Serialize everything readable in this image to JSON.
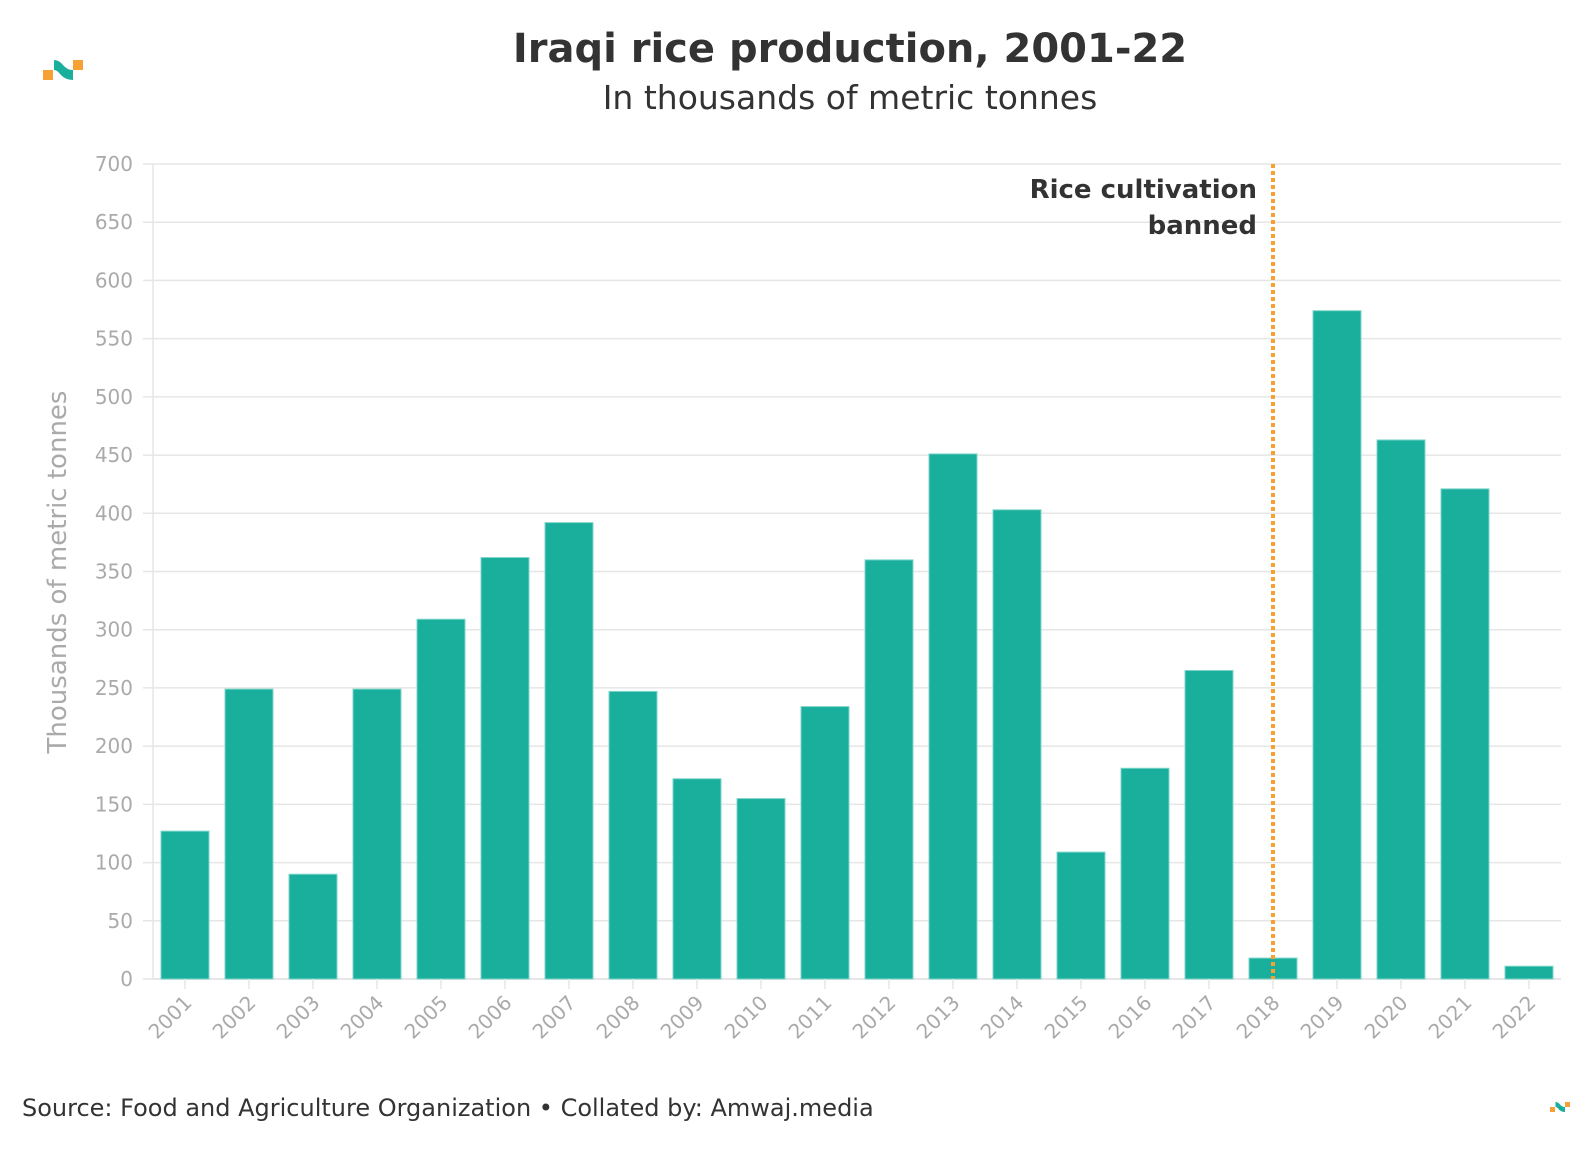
{
  "header": {
    "title": "Iraqi rice production, 2001-22",
    "subtitle": "In thousands of metric tonnes"
  },
  "footer": {
    "source": "Source: Food and Agriculture Organization • Collated by: Amwaj.media"
  },
  "brand": {
    "logo_icon": "amwaj-logo-icon",
    "colors": {
      "teal": "#1aae9c",
      "orange": "#f7a034",
      "text": "#333333",
      "axis": "#aaaaaa",
      "grid": "#e6e6e6"
    }
  },
  "chart_data": {
    "type": "bar",
    "title": "Iraqi rice production, 2001-22",
    "subtitle": "In thousands of metric tonnes",
    "xlabel": "",
    "ylabel": "Thousands of metric tonnes",
    "ylim": [
      0,
      700
    ],
    "yticks": [
      0,
      50,
      100,
      150,
      200,
      250,
      300,
      350,
      400,
      450,
      500,
      550,
      600,
      650,
      700
    ],
    "grid": true,
    "categories": [
      "2001",
      "2002",
      "2003",
      "2004",
      "2005",
      "2006",
      "2007",
      "2008",
      "2009",
      "2010",
      "2011",
      "2012",
      "2013",
      "2014",
      "2015",
      "2016",
      "2017",
      "2018",
      "2019",
      "2020",
      "2021",
      "2022"
    ],
    "values": [
      127,
      249,
      90,
      249,
      309,
      362,
      392,
      247,
      172,
      155,
      234,
      360,
      451,
      403,
      109,
      181,
      265,
      18,
      574,
      463,
      421,
      11
    ],
    "bar_color": "#1aae9c",
    "annotations": [
      {
        "type": "vline",
        "x": "2018",
        "style": "dotted",
        "color": "#f7a034",
        "label_lines": [
          "Rice cultivation",
          "banned"
        ]
      }
    ]
  }
}
